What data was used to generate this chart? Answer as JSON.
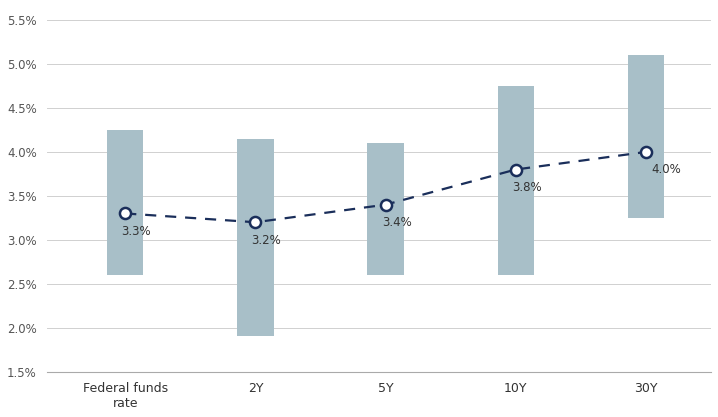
{
  "categories": [
    "Federal funds\nrate",
    "2Y",
    "5Y",
    "10Y",
    "30Y"
  ],
  "bar_bottoms": [
    2.6,
    1.9,
    2.6,
    2.6,
    3.25
  ],
  "bar_tops": [
    4.25,
    4.15,
    4.1,
    4.75,
    5.1
  ],
  "line_values": [
    3.3,
    3.2,
    3.4,
    3.8,
    4.0
  ],
  "line_labels": [
    "3.3%",
    "3.2%",
    "3.4%",
    "3.8%",
    "4.0%"
  ],
  "label_below": [
    true,
    true,
    true,
    true,
    false
  ],
  "bar_color": "#a8bfc8",
  "line_color": "#1a2e5a",
  "marker_face": "#ffffff",
  "marker_edge": "#1a2e5a",
  "ylim": [
    1.5,
    5.65
  ],
  "yticks": [
    1.5,
    2.0,
    2.5,
    3.0,
    3.5,
    4.0,
    4.5,
    5.0,
    5.5
  ],
  "ytick_labels": [
    "1.5%",
    "2.0%",
    "2.5%",
    "3.0%",
    "3.5%",
    "4.0%",
    "4.5%",
    "5.0%",
    "5.5%"
  ],
  "grid_color": "#d0d0d0",
  "background_color": "#ffffff",
  "bar_width": 0.28,
  "figsize": [
    7.18,
    4.17
  ],
  "dpi": 100
}
